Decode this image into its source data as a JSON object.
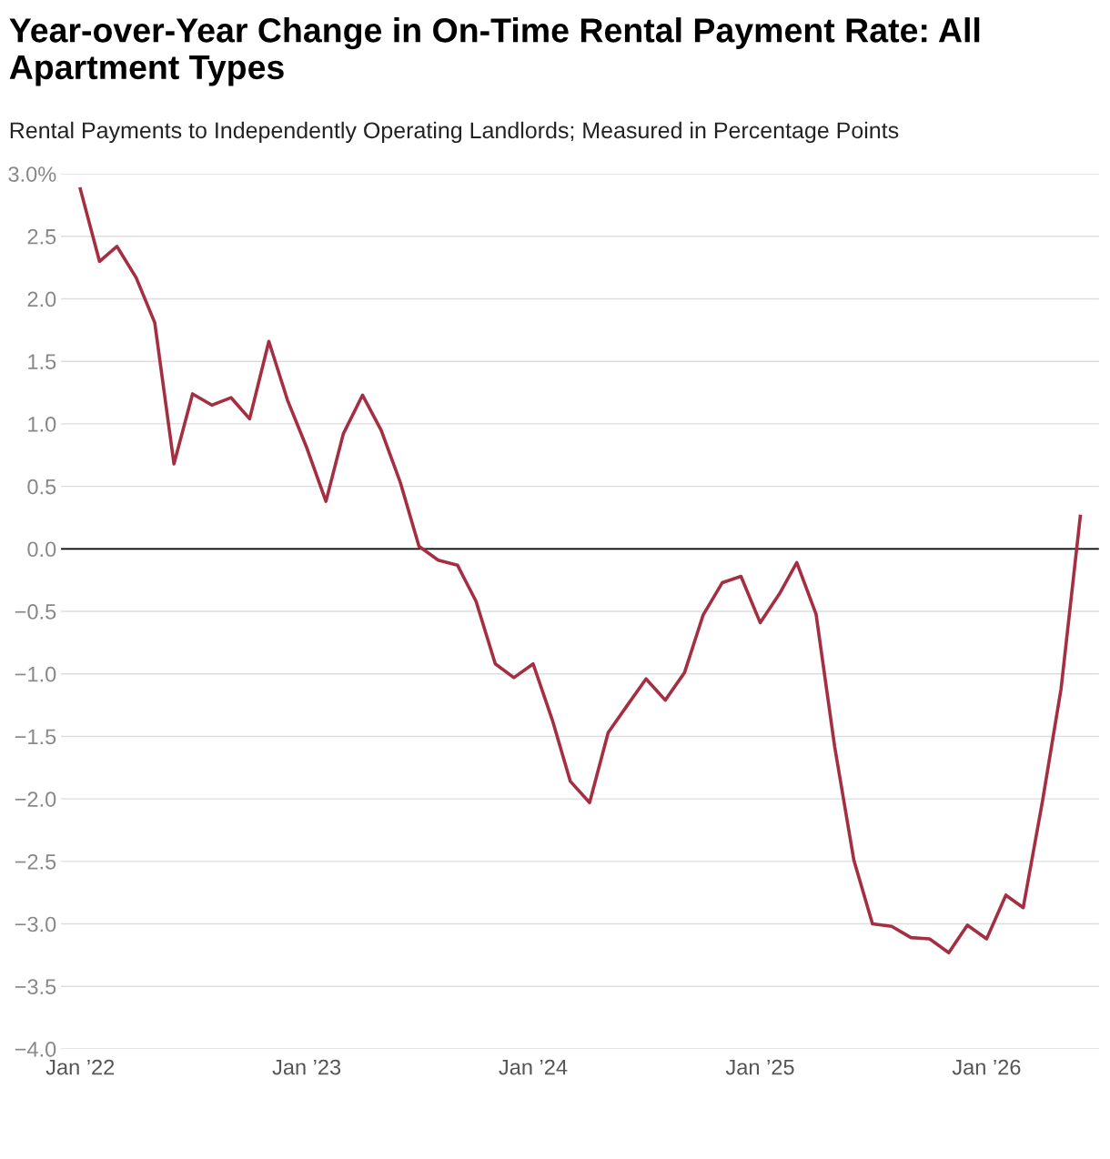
{
  "chart_data": {
    "type": "line",
    "title": "Year-over-Year Change in On-Time Rental Payment Rate: All Apartment Types",
    "subtitle": "Rental Payments to Independently Operating Landlords; Measured in Percentage Points",
    "x": [
      "2022-01",
      "2022-02",
      "2022-03",
      "2022-04",
      "2022-05",
      "2022-06",
      "2022-07",
      "2022-08",
      "2022-09",
      "2022-10",
      "2022-11",
      "2022-12",
      "2023-01",
      "2023-02",
      "2023-03",
      "2023-04",
      "2023-05",
      "2023-06",
      "2023-07",
      "2023-08",
      "2023-09",
      "2023-10",
      "2023-11",
      "2023-12",
      "2024-01",
      "2024-02",
      "2024-03",
      "2024-04",
      "2024-05",
      "2024-06",
      "2024-07",
      "2024-08",
      "2024-09",
      "2024-10",
      "2024-11",
      "2024-12",
      "2025-01",
      "2025-02",
      "2025-03",
      "2025-04",
      "2025-05",
      "2025-06",
      "2025-07",
      "2025-08",
      "2025-09",
      "2025-10",
      "2025-11",
      "2025-12",
      "2026-01",
      "2026-02",
      "2026-03",
      "2026-04",
      "2026-05",
      "2026-06"
    ],
    "series": [
      {
        "color": "#a52f42",
        "values": [
          2.88,
          2.3,
          2.42,
          2.17,
          1.81,
          0.68,
          1.24,
          1.15,
          1.21,
          1.04,
          1.66,
          1.19,
          0.81,
          0.38,
          0.92,
          1.23,
          0.95,
          0.53,
          0.02,
          -0.09,
          -0.13,
          -0.42,
          -0.92,
          -1.03,
          -0.92,
          -1.37,
          -1.86,
          -2.03,
          -1.47,
          -1.25,
          -1.04,
          -1.21,
          -0.99,
          -0.53,
          -0.27,
          -0.22,
          -0.59,
          -0.36,
          -0.11,
          -0.52,
          -1.58,
          -2.49,
          -3.0,
          -3.02,
          -3.11,
          -3.12,
          -3.23,
          -3.01,
          -3.12,
          -2.77,
          -2.87,
          -2.02,
          -1.12,
          0.26
        ]
      }
    ],
    "xlim": [
      "2021-12-01",
      "2026-07-01"
    ],
    "xticks": [
      {
        "value": "2022-01",
        "label": "Jan ’22"
      },
      {
        "value": "2023-01",
        "label": "Jan ’23"
      },
      {
        "value": "2024-01",
        "label": "Jan ’24"
      },
      {
        "value": "2025-01",
        "label": "Jan ’25"
      },
      {
        "value": "2026-01",
        "label": "Jan ’26"
      }
    ],
    "ylim": [
      -4.0,
      3.0
    ],
    "yticks": [
      {
        "value": 3.0,
        "label": "3.0%"
      },
      {
        "value": 2.5,
        "label": "2.5"
      },
      {
        "value": 2.0,
        "label": "2.0"
      },
      {
        "value": 1.5,
        "label": "1.5"
      },
      {
        "value": 1.0,
        "label": "1.0"
      },
      {
        "value": 0.5,
        "label": "0.5"
      },
      {
        "value": 0.0,
        "label": "0.0"
      },
      {
        "value": -0.5,
        "label": "−0.5"
      },
      {
        "value": -1.0,
        "label": "−1.0"
      },
      {
        "value": -1.5,
        "label": "−1.5"
      },
      {
        "value": -2.0,
        "label": "−2.0"
      },
      {
        "value": -2.5,
        "label": "−2.5"
      },
      {
        "value": -3.0,
        "label": "−3.0"
      },
      {
        "value": -3.5,
        "label": "−3.5"
      },
      {
        "value": -4.0,
        "label": "−4.0"
      }
    ],
    "ref_lines": [
      {
        "axis": "y",
        "value": 0,
        "color": "#000000"
      }
    ],
    "grid": "y",
    "legend": false,
    "marker": "none",
    "line_style": "solid"
  }
}
